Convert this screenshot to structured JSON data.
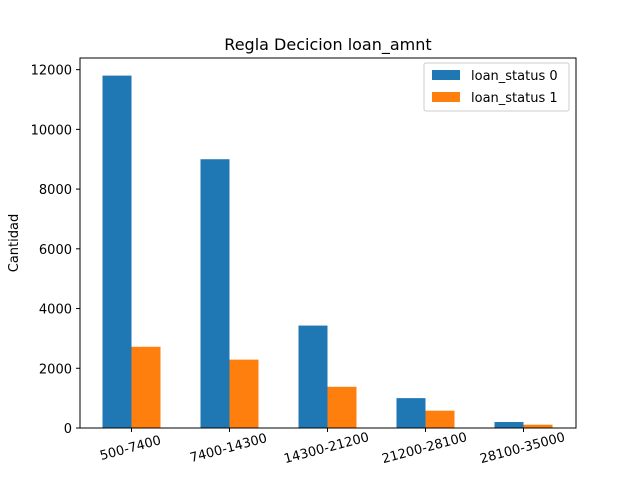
{
  "chart_data": {
    "type": "bar",
    "title": "Regla Decicion loan_amnt",
    "xlabel": "",
    "ylabel": "Cantidad",
    "categories": [
      "500-7400",
      "7400-14300",
      "14300-21200",
      "21200-28100",
      "28100-35000"
    ],
    "series": [
      {
        "name": "loan_status 0",
        "values": [
          11800,
          9000,
          3430,
          1000,
          200
        ],
        "color": "#1f77b4"
      },
      {
        "name": "loan_status 1",
        "values": [
          2720,
          2290,
          1380,
          580,
          110
        ],
        "color": "#ff7f0e"
      }
    ],
    "ylim": [
      0,
      12390
    ],
    "yticks": [
      0,
      2000,
      4000,
      6000,
      8000,
      10000,
      12000
    ],
    "ytick_labels": [
      "0",
      "2000",
      "4000",
      "6000",
      "8000",
      "10000",
      "12000"
    ],
    "grid": false,
    "legend_position": "top-right"
  }
}
